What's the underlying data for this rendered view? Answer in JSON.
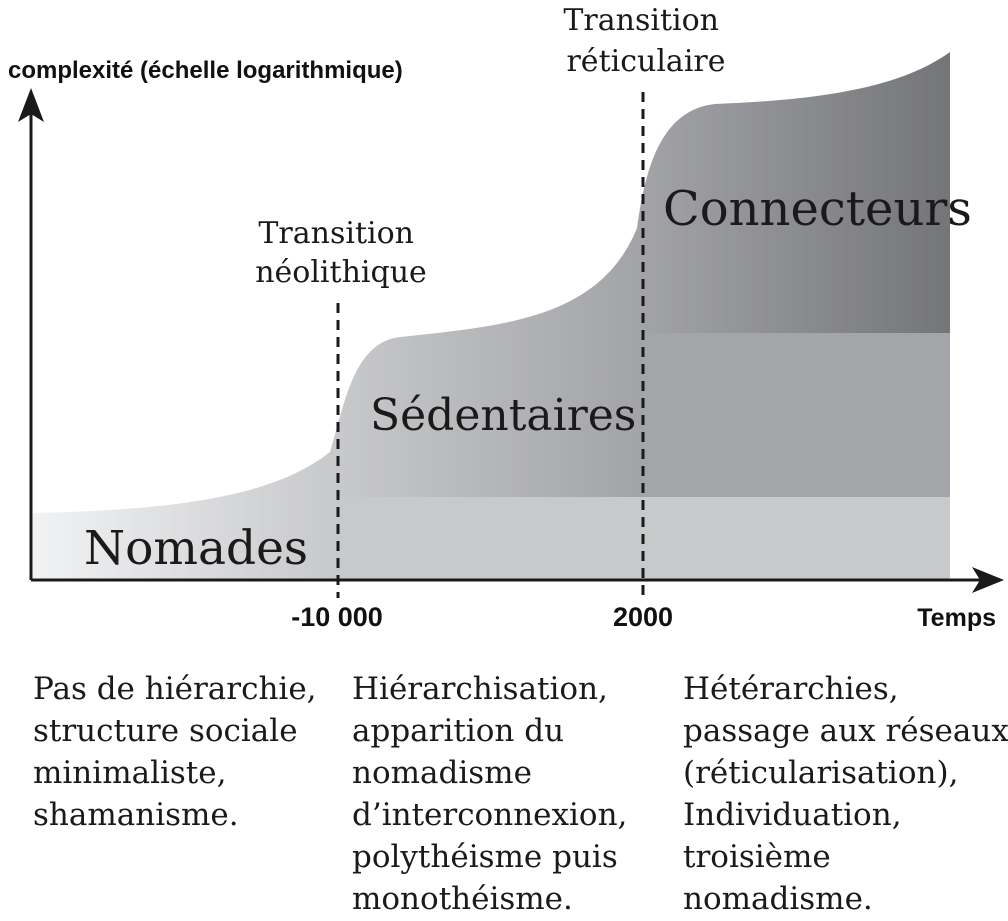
{
  "axes": {
    "y_label": "complexité (échelle logarithmique)",
    "x_label": "Temps",
    "ticks": [
      "-10 000",
      "2000"
    ]
  },
  "transitions": {
    "neolithique": [
      "Transition",
      "néolithique"
    ],
    "reticulaire": [
      "Transition",
      "réticulaire"
    ]
  },
  "eras": {
    "nomades": "Nomades",
    "sedentaires": "Sédentaires",
    "connecteurs": "Connecteurs"
  },
  "descriptions": {
    "nomades": [
      "Pas de hiérarchie,",
      "structure sociale",
      "minimaliste,",
      "shamanisme."
    ],
    "sedentaires": [
      "Hiérarchisation,",
      "apparition du",
      "nomadisme",
      "d’interconnexion,",
      "polythéisme puis",
      "monothéisme."
    ],
    "connecteurs": [
      "Hétérarchies,",
      "passage aux réseaux",
      "(réticularisation),",
      "Individuation,",
      "troisième",
      "nomadisme."
    ]
  },
  "colors": {
    "axis": "#1a1a1a",
    "band_nomades": "#c8c9cb",
    "band_sedentaires": "#a4a5a8",
    "band_connecteurs": "#76777a"
  }
}
